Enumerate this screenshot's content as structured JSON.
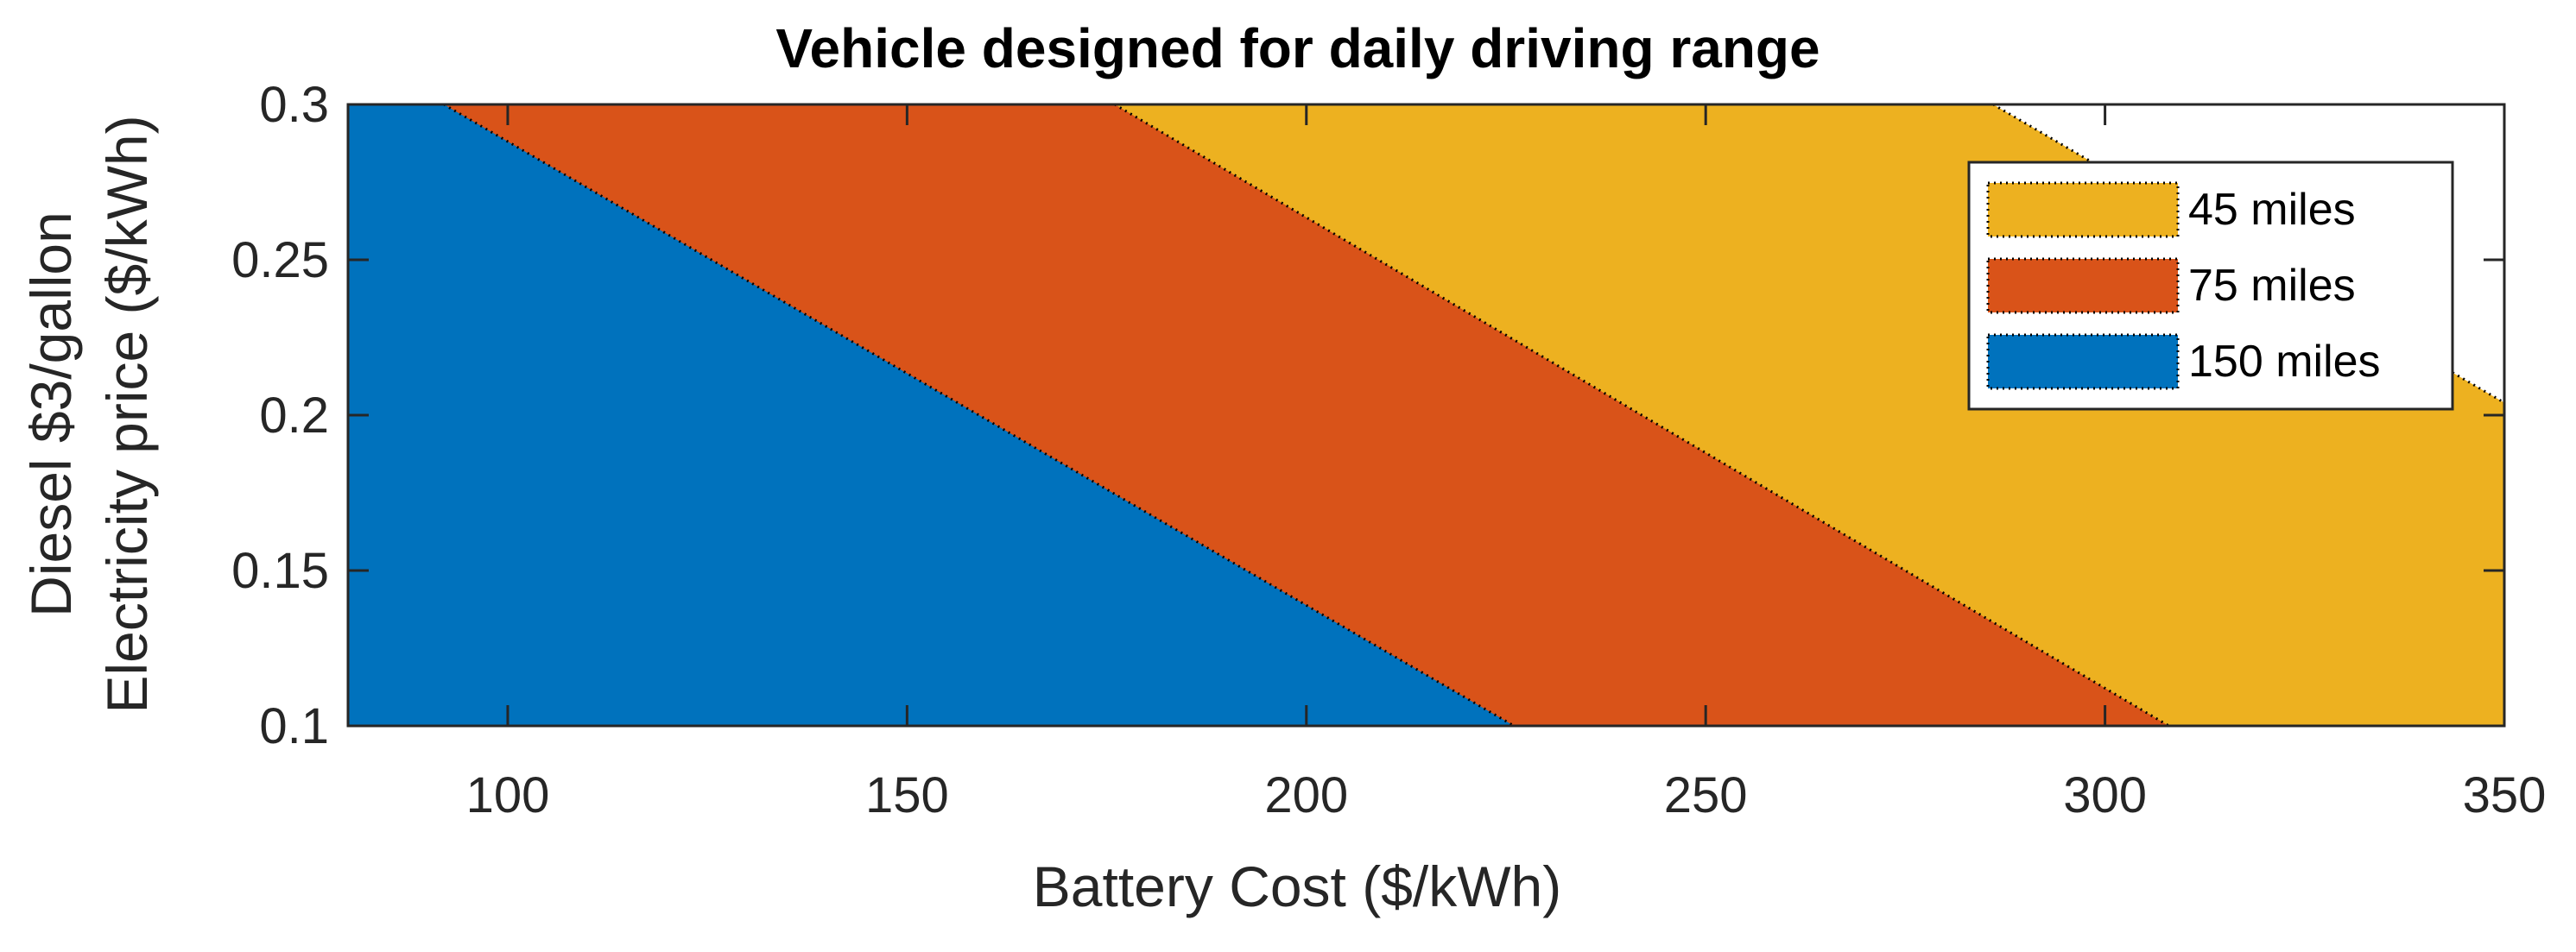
{
  "chart_data": {
    "type": "area",
    "title": "Vehicle designed for daily driving range",
    "xlabel": "Battery Cost ($/kWh)",
    "ylabel_lines": [
      "Diesel $3/gallon",
      "Electricity price ($/kWh)"
    ],
    "xlim": [
      80,
      350
    ],
    "ylim": [
      0.1,
      0.3
    ],
    "xticks": [
      100,
      150,
      200,
      250,
      300,
      350
    ],
    "yticks": [
      0.1,
      0.15,
      0.2,
      0.25,
      0.3
    ],
    "xtick_labels": [
      "100",
      "150",
      "200",
      "250",
      "300",
      "350"
    ],
    "ytick_labels": [
      "0.1",
      "0.15",
      "0.2",
      "0.25",
      "0.3"
    ],
    "grid": false,
    "legend_position": "top-right",
    "series": [
      {
        "name": "45 miles",
        "color": "#EDB120",
        "boundary_right": [
          [
            286,
            0.3
          ],
          [
            350,
            0.204
          ]
        ]
      },
      {
        "name": "75 miles",
        "color": "#D95319",
        "boundary_right": [
          [
            176,
            0.3
          ],
          [
            308,
            0.1
          ]
        ]
      },
      {
        "name": "150 miles",
        "color": "#0072BD",
        "boundary_right": [
          [
            92,
            0.3
          ],
          [
            226,
            0.1
          ]
        ]
      }
    ]
  }
}
